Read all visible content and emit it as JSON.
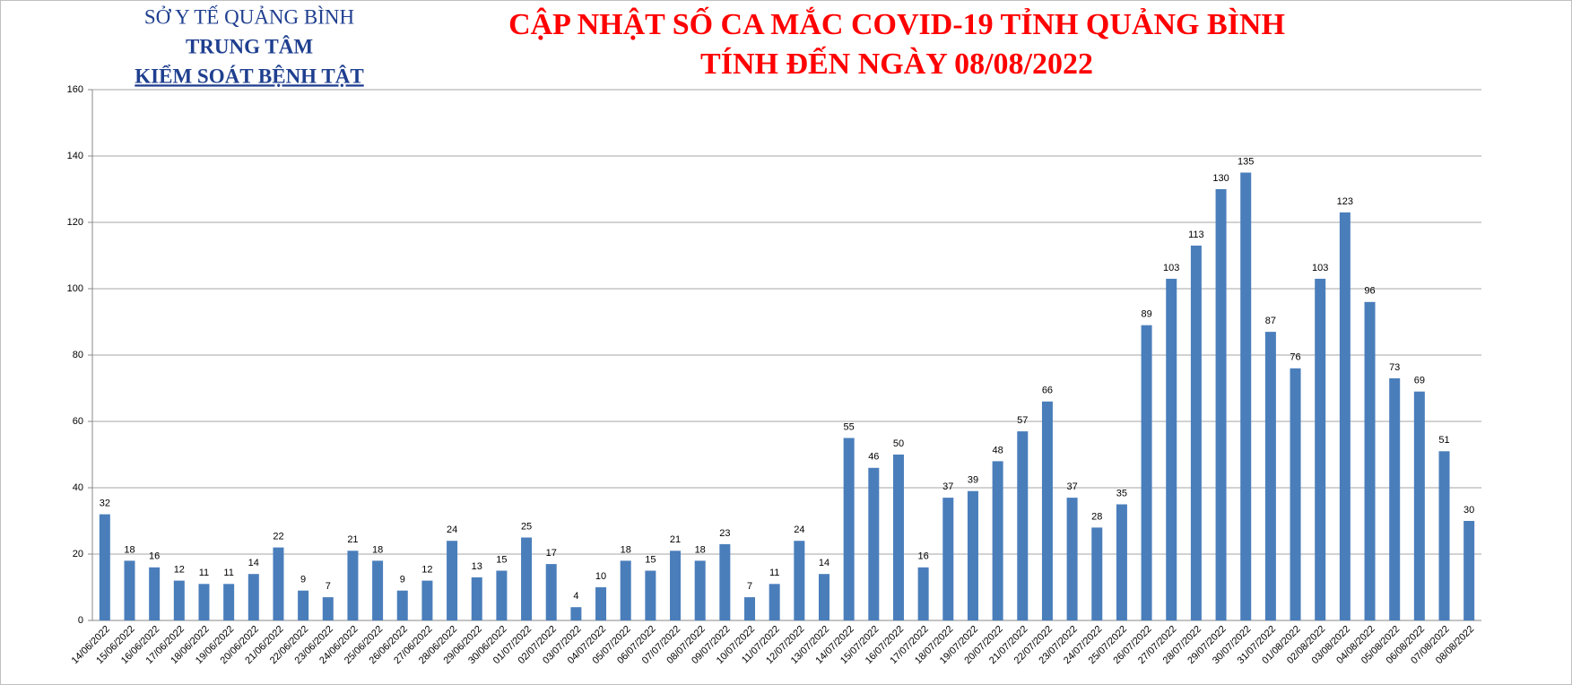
{
  "chart_data": {
    "type": "bar",
    "organization": [
      "SỞ Y TẾ QUẢNG BÌNH",
      "TRUNG TÂM",
      "KIỂM SOÁT BỆNH TẬT"
    ],
    "title": [
      "CẬP NHẬT SỐ CA MẮC COVID-19 TỈNH QUẢNG BÌNH",
      "TÍNH ĐẾN NGÀY 08/08/2022"
    ],
    "categories": [
      "14/06/2022",
      "15/06/2022",
      "16/06/2022",
      "17/06/2022",
      "18/06/2022",
      "19/06/2022",
      "20/06/2022",
      "21/06/2022",
      "22/06/2022",
      "23/06/2022",
      "24/06/2022",
      "25/06/2022",
      "26/06/2022",
      "27/06/2022",
      "28/06/2022",
      "29/06/2022",
      "30/06/2022",
      "01/07/2022",
      "02/07/2022",
      "03/07/2022",
      "04/07/2022",
      "05/07/2022",
      "06/07/2022",
      "07/07/2022",
      "08/07/2022",
      "09/07/2022",
      "10/07/2022",
      "11/07/2022",
      "12/07/2022",
      "13/07/2022",
      "14/07/2022",
      "15/07/2022",
      "16/07/2022",
      "17/07/2022",
      "18/07/2022",
      "19/07/2022",
      "20/07/2022",
      "21/07/2022",
      "22/07/2022",
      "23/07/2022",
      "24/07/2022",
      "25/07/2022",
      "26/07/2022",
      "27/07/2022",
      "28/07/2022",
      "29/07/2022",
      "30/07/2022",
      "31/07/2022",
      "01/08/2022",
      "02/08/2022",
      "03/08/2022",
      "04/08/2022",
      "05/08/2022",
      "06/08/2022",
      "07/08/2022",
      "08/08/2022"
    ],
    "values": [
      32,
      18,
      16,
      12,
      11,
      11,
      14,
      22,
      9,
      7,
      21,
      18,
      9,
      12,
      24,
      13,
      15,
      25,
      17,
      4,
      10,
      18,
      15,
      21,
      18,
      23,
      7,
      11,
      24,
      14,
      55,
      46,
      50,
      16,
      37,
      39,
      48,
      57,
      66,
      37,
      28,
      35,
      89,
      103,
      113,
      130,
      135,
      87,
      76,
      103,
      123,
      96,
      73,
      69,
      51,
      30
    ],
    "color": "#4a7ebb",
    "ylim": [
      0,
      160
    ],
    "yticks": [
      0,
      20,
      40,
      60,
      80,
      100,
      120,
      140,
      160
    ],
    "grid": true
  }
}
